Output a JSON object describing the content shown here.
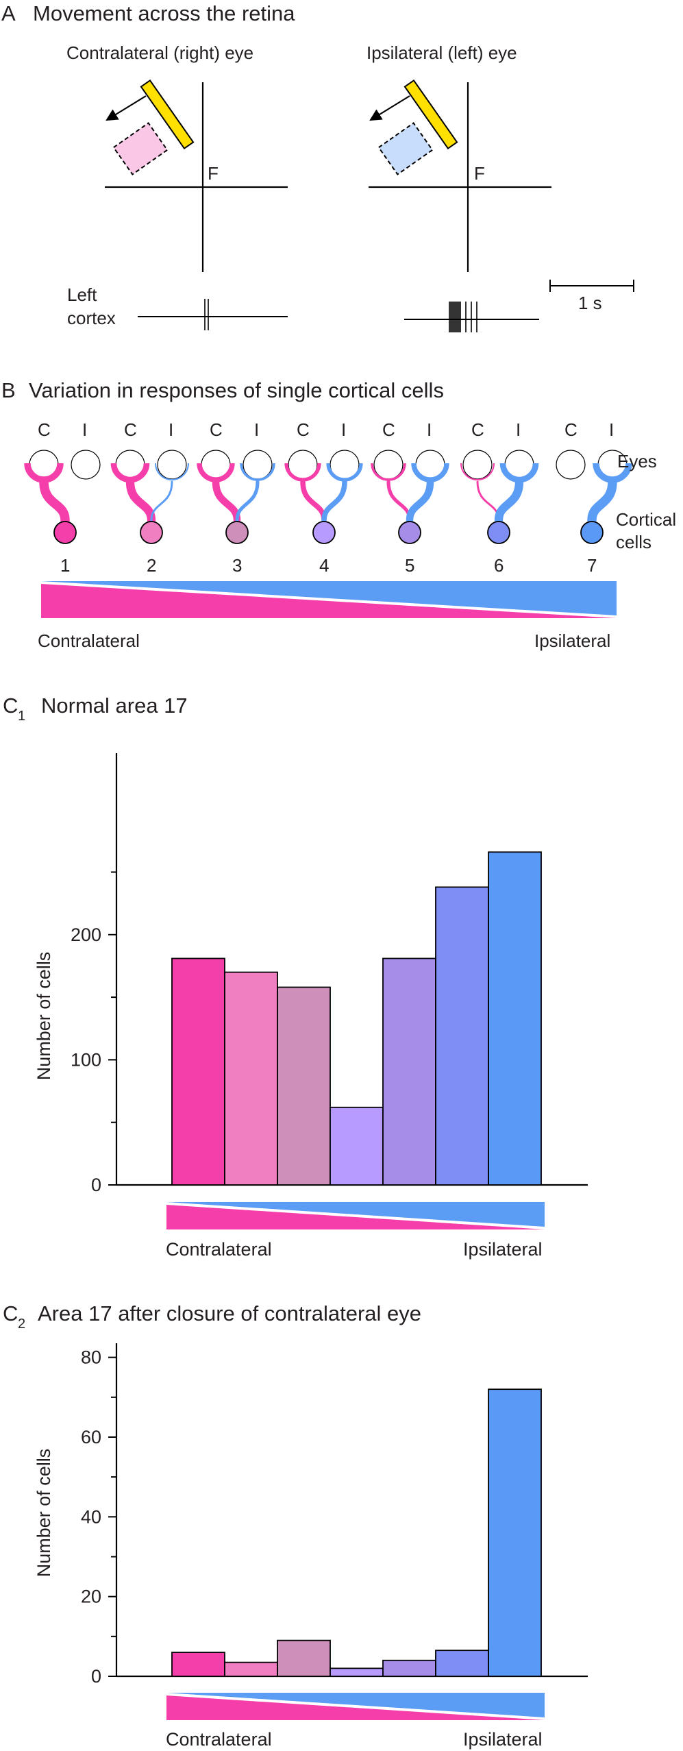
{
  "colors": {
    "pink": "#f53ea9",
    "blue": "#5b9cf5",
    "bar_colors": [
      "#f43fab",
      "#ef7fc1",
      "#cf8fbb",
      "#b79bff",
      "#a68ee8",
      "#7f8ef5",
      "#5a9af6"
    ],
    "stimulus_bar": "#ffe000",
    "pink_field": "#fbc7e7",
    "blue_field": "#c8dcfb"
  },
  "panel_a": {
    "letter": "A",
    "title": "Movement across the retina",
    "eye_right_label": "Contralateral (right) eye",
    "eye_left_label": "Ipsilateral (left) eye",
    "fixation_label": "F",
    "cortex_label_line1": "Left",
    "cortex_label_line2": "cortex",
    "scale_label": "1 s",
    "contralateral_spikes": 2,
    "ipsilateral_spikes": 12
  },
  "panel_b": {
    "letter": "B",
    "title": "Variation in responses of single cortical cells",
    "eye_c": "C",
    "eye_i": "I",
    "eyes_label": "Eyes",
    "cortical_label_line1": "Cortical",
    "cortical_label_line2": "cells",
    "groups": [
      "1",
      "2",
      "3",
      "4",
      "5",
      "6",
      "7"
    ],
    "group_colors": [
      "#f43fab",
      "#ef7fc1",
      "#cf8fbb",
      "#b79bff",
      "#a68ee8",
      "#7f8ef5",
      "#5a9af6"
    ],
    "contralateral_input": [
      1,
      0.9,
      0.75,
      0.5,
      0.3,
      0.12,
      0
    ],
    "ipsilateral_input": [
      0,
      0.12,
      0.3,
      0.5,
      0.75,
      0.9,
      1
    ],
    "left_label": "Contralateral",
    "right_label": "Ipsilateral"
  },
  "chart_data": [
    {
      "type": "bar",
      "panel_letter": "C",
      "panel_sub": "1",
      "title": "Normal area 17",
      "ylabel": "Number of cells",
      "ylim": [
        0,
        270
      ],
      "yticks": [
        0,
        100,
        200
      ],
      "minor_ticks": [
        50,
        150,
        250
      ],
      "categories": [
        "1",
        "2",
        "3",
        "4",
        "5",
        "6",
        "7"
      ],
      "values": [
        181,
        170,
        158,
        62,
        181,
        238,
        266
      ],
      "x_left_label": "Contralateral",
      "x_right_label": "Ipsilateral"
    },
    {
      "type": "bar",
      "panel_letter": "C",
      "panel_sub": "2",
      "title": "Area 17 after closure of contralateral eye",
      "ylabel": "Number of cells",
      "ylim": [
        0,
        82
      ],
      "yticks": [
        0,
        20,
        40,
        60,
        80
      ],
      "minor_ticks": [
        10,
        30,
        50,
        70
      ],
      "categories": [
        "1",
        "2",
        "3",
        "4",
        "5",
        "6",
        "7"
      ],
      "values": [
        6,
        3.5,
        9,
        2,
        4,
        6.5,
        72
      ],
      "x_left_label": "Contralateral",
      "x_right_label": "Ipsilateral"
    }
  ]
}
